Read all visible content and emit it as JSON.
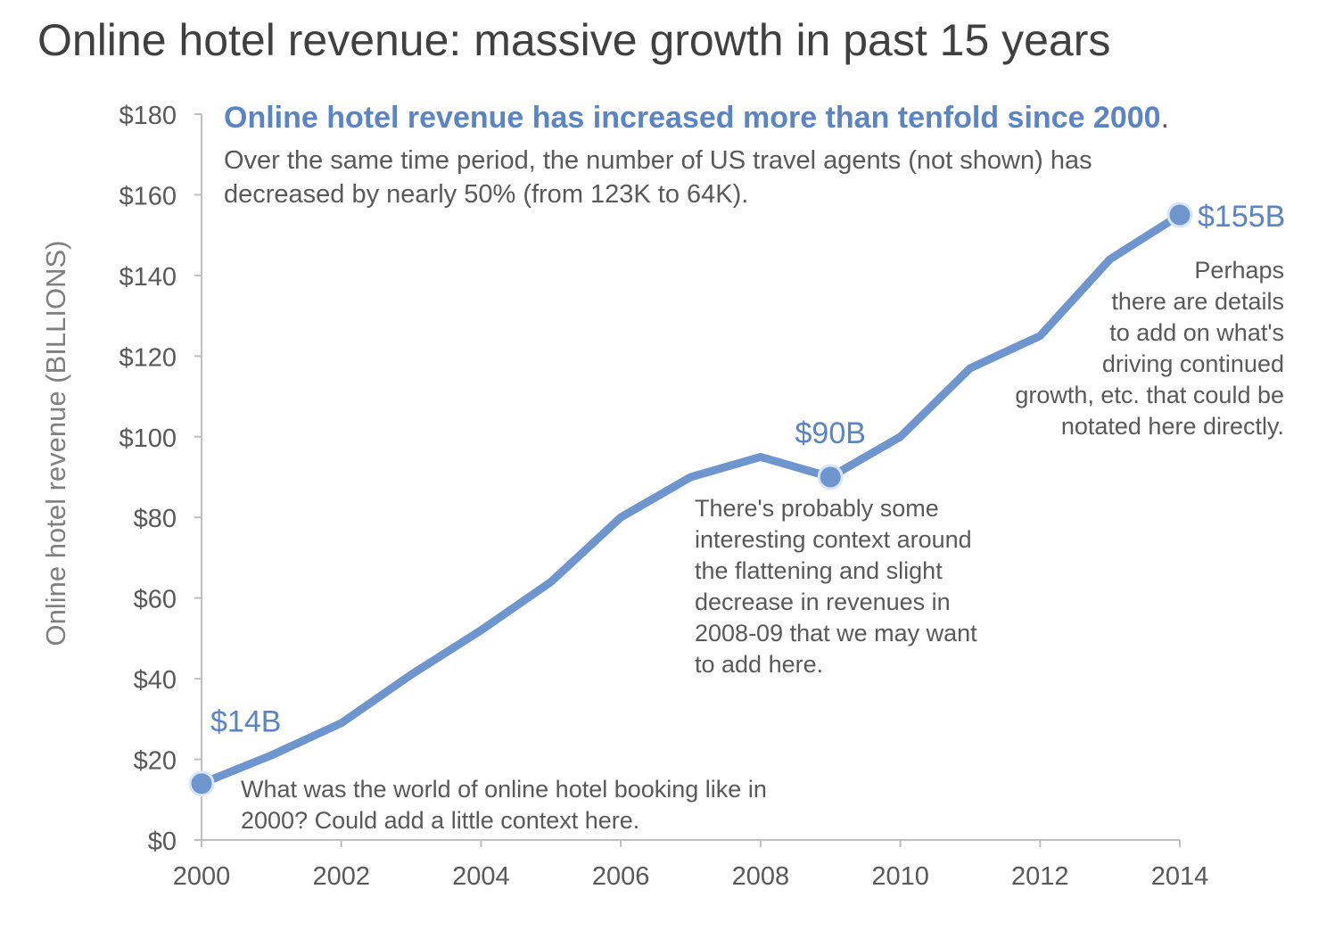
{
  "title": "Online hotel revenue: massive growth in past 15 years",
  "colors": {
    "line": "#6f95ce",
    "accent": "#5b84c4",
    "axis": "#bfbfbf",
    "text": "#595959"
  },
  "chart_data": {
    "type": "line",
    "title": "Online hotel revenue: massive growth in past 15 years",
    "xlabel": "",
    "ylabel": "Online hotel revenue (BILLIONS)",
    "x": [
      2000,
      2001,
      2002,
      2003,
      2004,
      2005,
      2006,
      2007,
      2008,
      2009,
      2010,
      2011,
      2012,
      2013,
      2014
    ],
    "values": [
      14,
      21,
      29,
      41,
      52,
      64,
      80,
      90,
      95,
      90,
      100,
      117,
      125,
      144,
      155
    ],
    "xlim": [
      2000,
      2014
    ],
    "ylim": [
      0,
      180
    ],
    "xticks": [
      "2000",
      "2002",
      "2004",
      "2006",
      "2008",
      "2010",
      "2012",
      "2014"
    ],
    "yticks": [
      "$0",
      "$20",
      "$40",
      "$60",
      "$80",
      "$100",
      "$120",
      "$140",
      "$160",
      "$180"
    ],
    "grid": false,
    "highlights": [
      {
        "x": 2000,
        "y": 14,
        "label": "$14B"
      },
      {
        "x": 2009,
        "y": 90,
        "label": "$90B"
      },
      {
        "x": 2014,
        "y": 155,
        "label": "$155B"
      }
    ],
    "annotations": {
      "headline": "Online hotel revenue has increased more than tenfold since 2000",
      "headline_period": ".",
      "subtext": [
        "Over the same time period, the number of US travel agents (not shown) has",
        "decreased by nearly 50% (from 123K to 64K)."
      ],
      "note_2000": [
        "What was the world of online hotel booking like in",
        "2000? Could add a little context here."
      ],
      "note_2009": [
        "There's probably some",
        "interesting context around",
        "the flattening and slight",
        "decrease in revenues in",
        "2008-09 that we may want",
        "to add here."
      ],
      "note_2014": [
        "Perhaps",
        "there are details",
        "to add on what's",
        "driving continued",
        "growth, etc. that could be",
        "notated here directly."
      ]
    }
  }
}
